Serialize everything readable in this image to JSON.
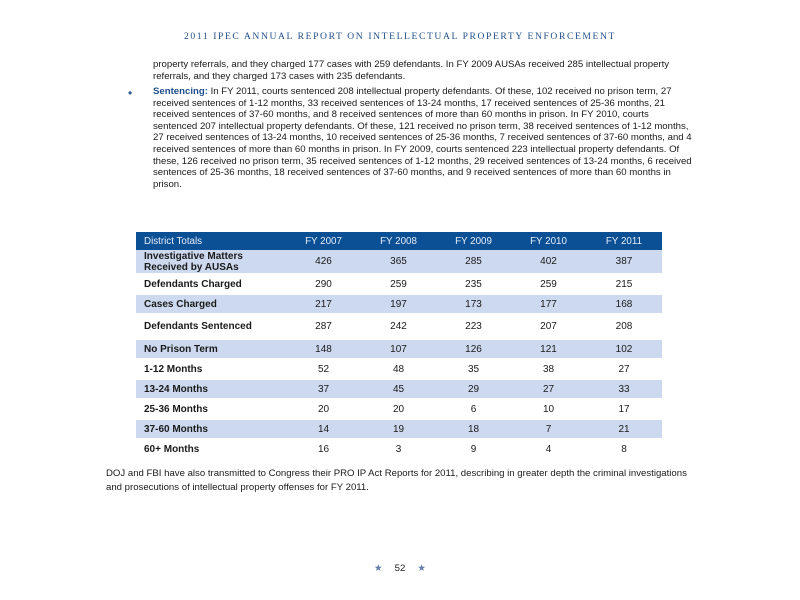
{
  "header": {
    "running_head": "2011 IPEC ANNUAL REPORT ON INTELLECTUAL PROPERTY ENFORCEMENT"
  },
  "paragraph1": "property referrals, and they charged 177 cases with 259 defendants. In FY 2009 AUSAs received 285 intellectual property referrals, and they charged 173 cases with 235 defendants.",
  "bullet": {
    "symbol": "•",
    "lead": "Sentencing:",
    "text": " In FY 2011, courts sentenced 208 intellectual property defendants. Of these, 102 received no prison term, 27 received sentences of 1-12 months, 33 received sentences of 13-24 months, 17 received sentences of 25-36 months, 21 received sentences of 37-60 months, and 8 received sentences of more than 60 months in prison. In FY 2010, courts sentenced 207 intellectual property defendants. Of these, 121 received no prison term, 38 received sentences of 1-12 months, 27 received sentences of 13-24 months, 10 received sentences of 25-36 months, 7 received sentences of 37-60 months, and 4 received sentences of more than 60 months in prison. In FY 2009, courts sentenced 223 intellectual property defendants. Of these, 126 received no prison term, 35 received sentences of 1-12 months, 29 received sentences of 13-24 months, 6 received sentences of 25-36 months, 18 received sentences of 37-60 months, and 9 received sentences of more than 60 months in prison."
  },
  "table": {
    "headers": [
      "District Totals",
      "FY 2007",
      "FY 2008",
      "FY 2009",
      "FY 2010",
      "FY 2011"
    ],
    "rows": [
      {
        "label": "Investigative Matters Received by AUSAs",
        "values": [
          "426",
          "365",
          "285",
          "402",
          "387"
        ]
      },
      {
        "label": "Defendants Charged",
        "values": [
          "290",
          "259",
          "235",
          "259",
          "215"
        ]
      },
      {
        "label": "Cases Charged",
        "values": [
          "217",
          "197",
          "173",
          "177",
          "168"
        ]
      },
      {
        "label": "Defendants Sentenced",
        "values": [
          "287",
          "242",
          "223",
          "207",
          "208"
        ]
      },
      {
        "label": "No Prison Term",
        "values": [
          "148",
          "107",
          "126",
          "121",
          "102"
        ]
      },
      {
        "label": "1-12 Months",
        "values": [
          "52",
          "48",
          "35",
          "38",
          "27"
        ]
      },
      {
        "label": "13-24 Months",
        "values": [
          "37",
          "45",
          "29",
          "27",
          "33"
        ]
      },
      {
        "label": "25-36 Months",
        "values": [
          "20",
          "20",
          "6",
          "10",
          "17"
        ]
      },
      {
        "label": "37-60 Months",
        "values": [
          "14",
          "19",
          "18",
          "7",
          "21"
        ]
      },
      {
        "label": "60+ Months",
        "values": [
          "16",
          "3",
          "9",
          "4",
          "8"
        ]
      }
    ]
  },
  "paragraph2": "DOJ and FBI have also transmitted to Congress their PRO IP Act Reports for 2011, describing in greater depth the criminal investigations and prosecutions of intellectual property offenses for FY 2011.",
  "footer": {
    "page_number": "52",
    "star": "★"
  }
}
